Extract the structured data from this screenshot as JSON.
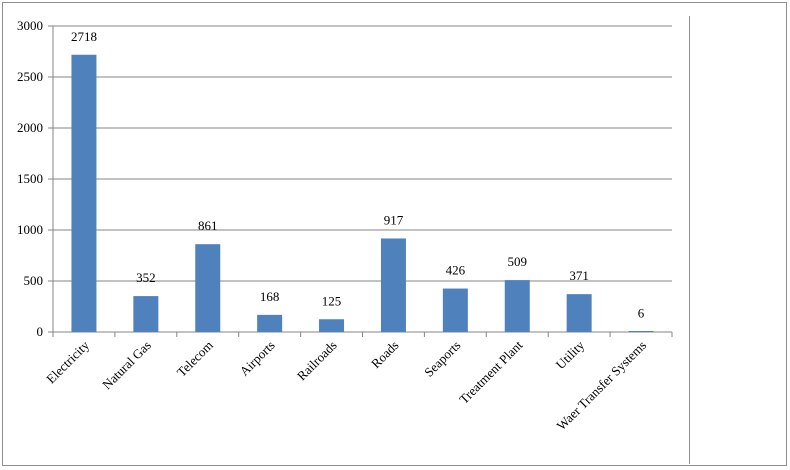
{
  "chart_data": {
    "type": "bar",
    "categories": [
      "Electricity",
      "Natural Gas",
      "Telecom",
      "Airports",
      "Railroads",
      "Roads",
      "Seaports",
      "Treatment Plant",
      "Utility",
      "Waer Transfer Systems"
    ],
    "values": [
      2718,
      352,
      861,
      168,
      125,
      917,
      426,
      509,
      371,
      6
    ],
    "data_labels": [
      "2718",
      "352",
      "861",
      "168",
      "125",
      "917",
      "426",
      "509",
      "371",
      "6"
    ],
    "y_ticks": [
      "0",
      "500",
      "1000",
      "1500",
      "2000",
      "2500",
      "3000"
    ],
    "ylim": [
      0,
      3000
    ],
    "title": "",
    "xlabel": "",
    "ylabel": "",
    "grid": true,
    "bar_color": "#4f81bd",
    "grid_color": "#868686"
  }
}
